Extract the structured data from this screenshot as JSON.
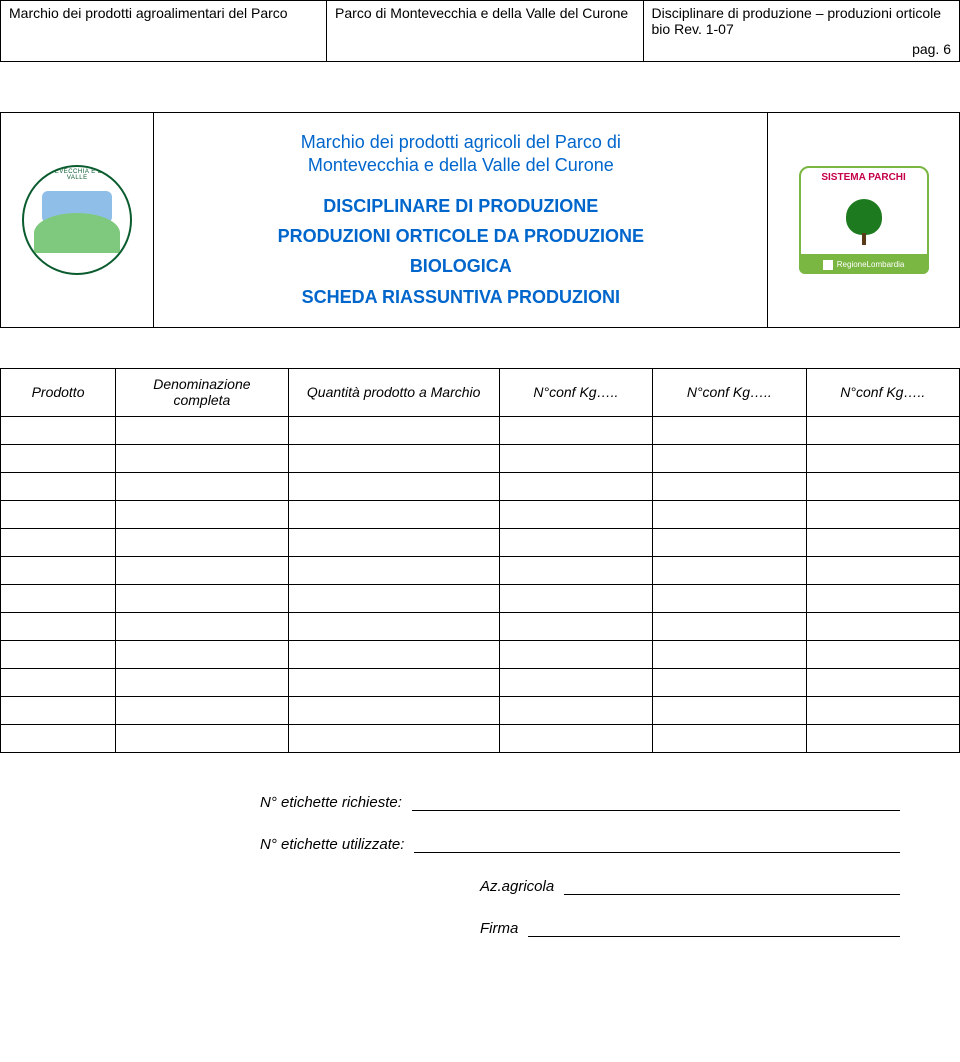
{
  "header": {
    "left": "Marchio dei prodotti agroalimentari del Parco",
    "mid": "Parco di Montevecchia e della Valle del Curone",
    "right_line1": "Disciplinare di produzione – produzioni orticole bio Rev. 1-07",
    "right_page": "pag. 6"
  },
  "title_block": {
    "line1": "Marchio dei prodotti agricoli del Parco di",
    "line2": "Montevecchia e della Valle del Curone",
    "line3": "DISCIPLINARE DI PRODUZIONE",
    "line4": "PRODUZIONI ORTICOLE DA PRODUZIONE",
    "line5": "BIOLOGICA",
    "line6": "SCHEDA RIASSUNTIVA PRODUZIONI"
  },
  "logo1": {
    "ring_text": "MONTEVECCHIA E DELLA VALLE"
  },
  "logo2": {
    "top_label": "SISTEMA PARCHI",
    "bottom_label": "RegioneLombardia"
  },
  "columns": {
    "c1": "Prodotto",
    "c2": "Denominazione completa",
    "c3": "Quantità prodotto a Marchio",
    "c4": "N°conf Kg…..",
    "c5": "N°conf Kg…..",
    "c6": "N°conf Kg….."
  },
  "empty_rows": 12,
  "footer": {
    "f1": "N° etichette richieste:",
    "f2": "N° etichette utilizzate:",
    "f3": "Az.agricola",
    "f4": "Firma"
  },
  "colors": {
    "blue": "#0066cc",
    "green_border": "#0a5c2e",
    "sistema_green": "#7ab642",
    "sistema_pink": "#c4004a"
  }
}
